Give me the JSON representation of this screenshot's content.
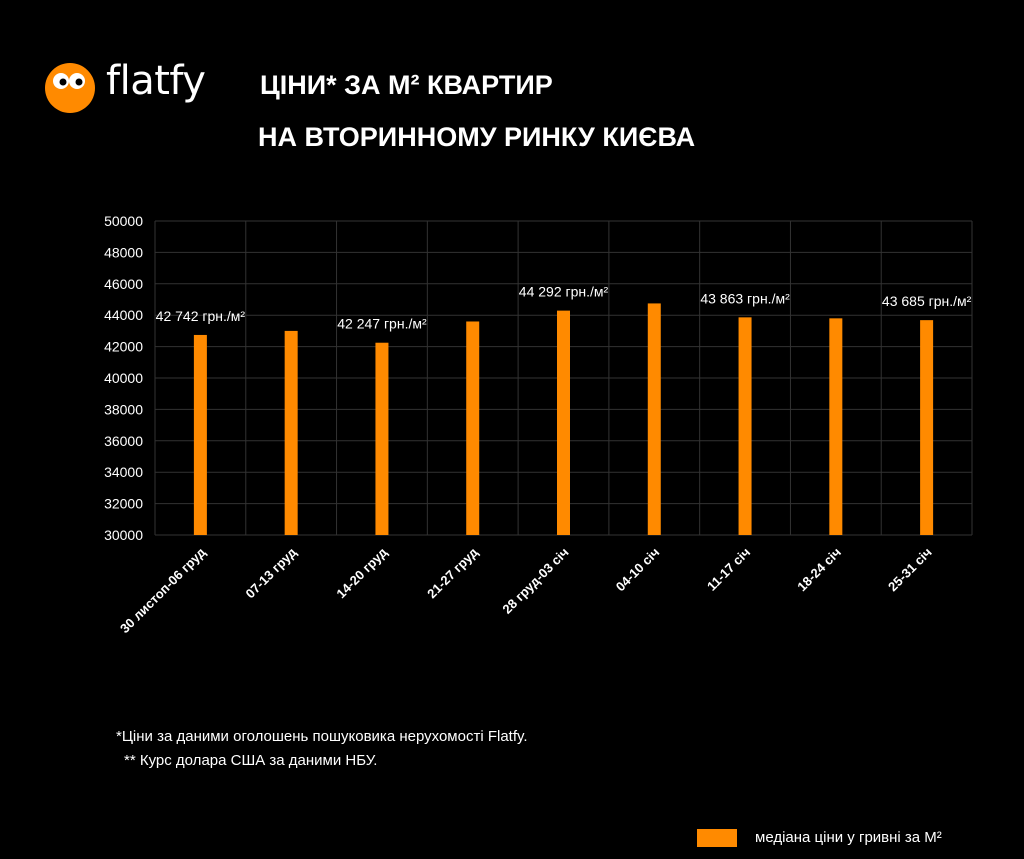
{
  "logo": {
    "text": "flatfy"
  },
  "title": {
    "line1": "ЦІНИ* ЗА М² КВАРТИР",
    "line2": "НА ВТОРИННОМУ РИНКУ КИЄВА"
  },
  "notes": [
    "*Ціни за даними оголошень пошуковика нерухомості Flatfy.",
    "** Курс долара США за даними НБУ."
  ],
  "legend": {
    "label": "медіана ціни у гривні за М²"
  },
  "colors": {
    "bar": "#ff8a00",
    "background": "#000000",
    "grid": "#333333",
    "text": "#ffffff",
    "logo": "#ff8a00"
  },
  "chart_data": {
    "type": "bar",
    "categories": [
      "30 листоп-06 груд",
      "07-13 груд",
      "14-20 груд",
      "21-27 груд",
      "28 груд-03 січ",
      "04-10 січ",
      "11-17 січ",
      "18-24 січ",
      "25-31 січ"
    ],
    "series": [
      {
        "name": "медіана ціни у гривні за М²",
        "values": [
          42742,
          43000,
          42247,
          43600,
          44292,
          44750,
          43863,
          43800,
          43685
        ]
      }
    ],
    "data_labels": [
      "42 742 грн./м²",
      "",
      "42 247 грн./м²",
      "",
      "44 292 грн./м²",
      "",
      "43 863 грн./м²",
      "",
      "43 685 грн./м²"
    ],
    "ylim": [
      30000,
      50000
    ],
    "yticks": [
      "30000",
      "32000",
      "34000",
      "36000",
      "38000",
      "40000",
      "42000",
      "44000",
      "46000",
      "48000",
      "50000"
    ],
    "grid": true,
    "legend_position": "bottom-right"
  }
}
